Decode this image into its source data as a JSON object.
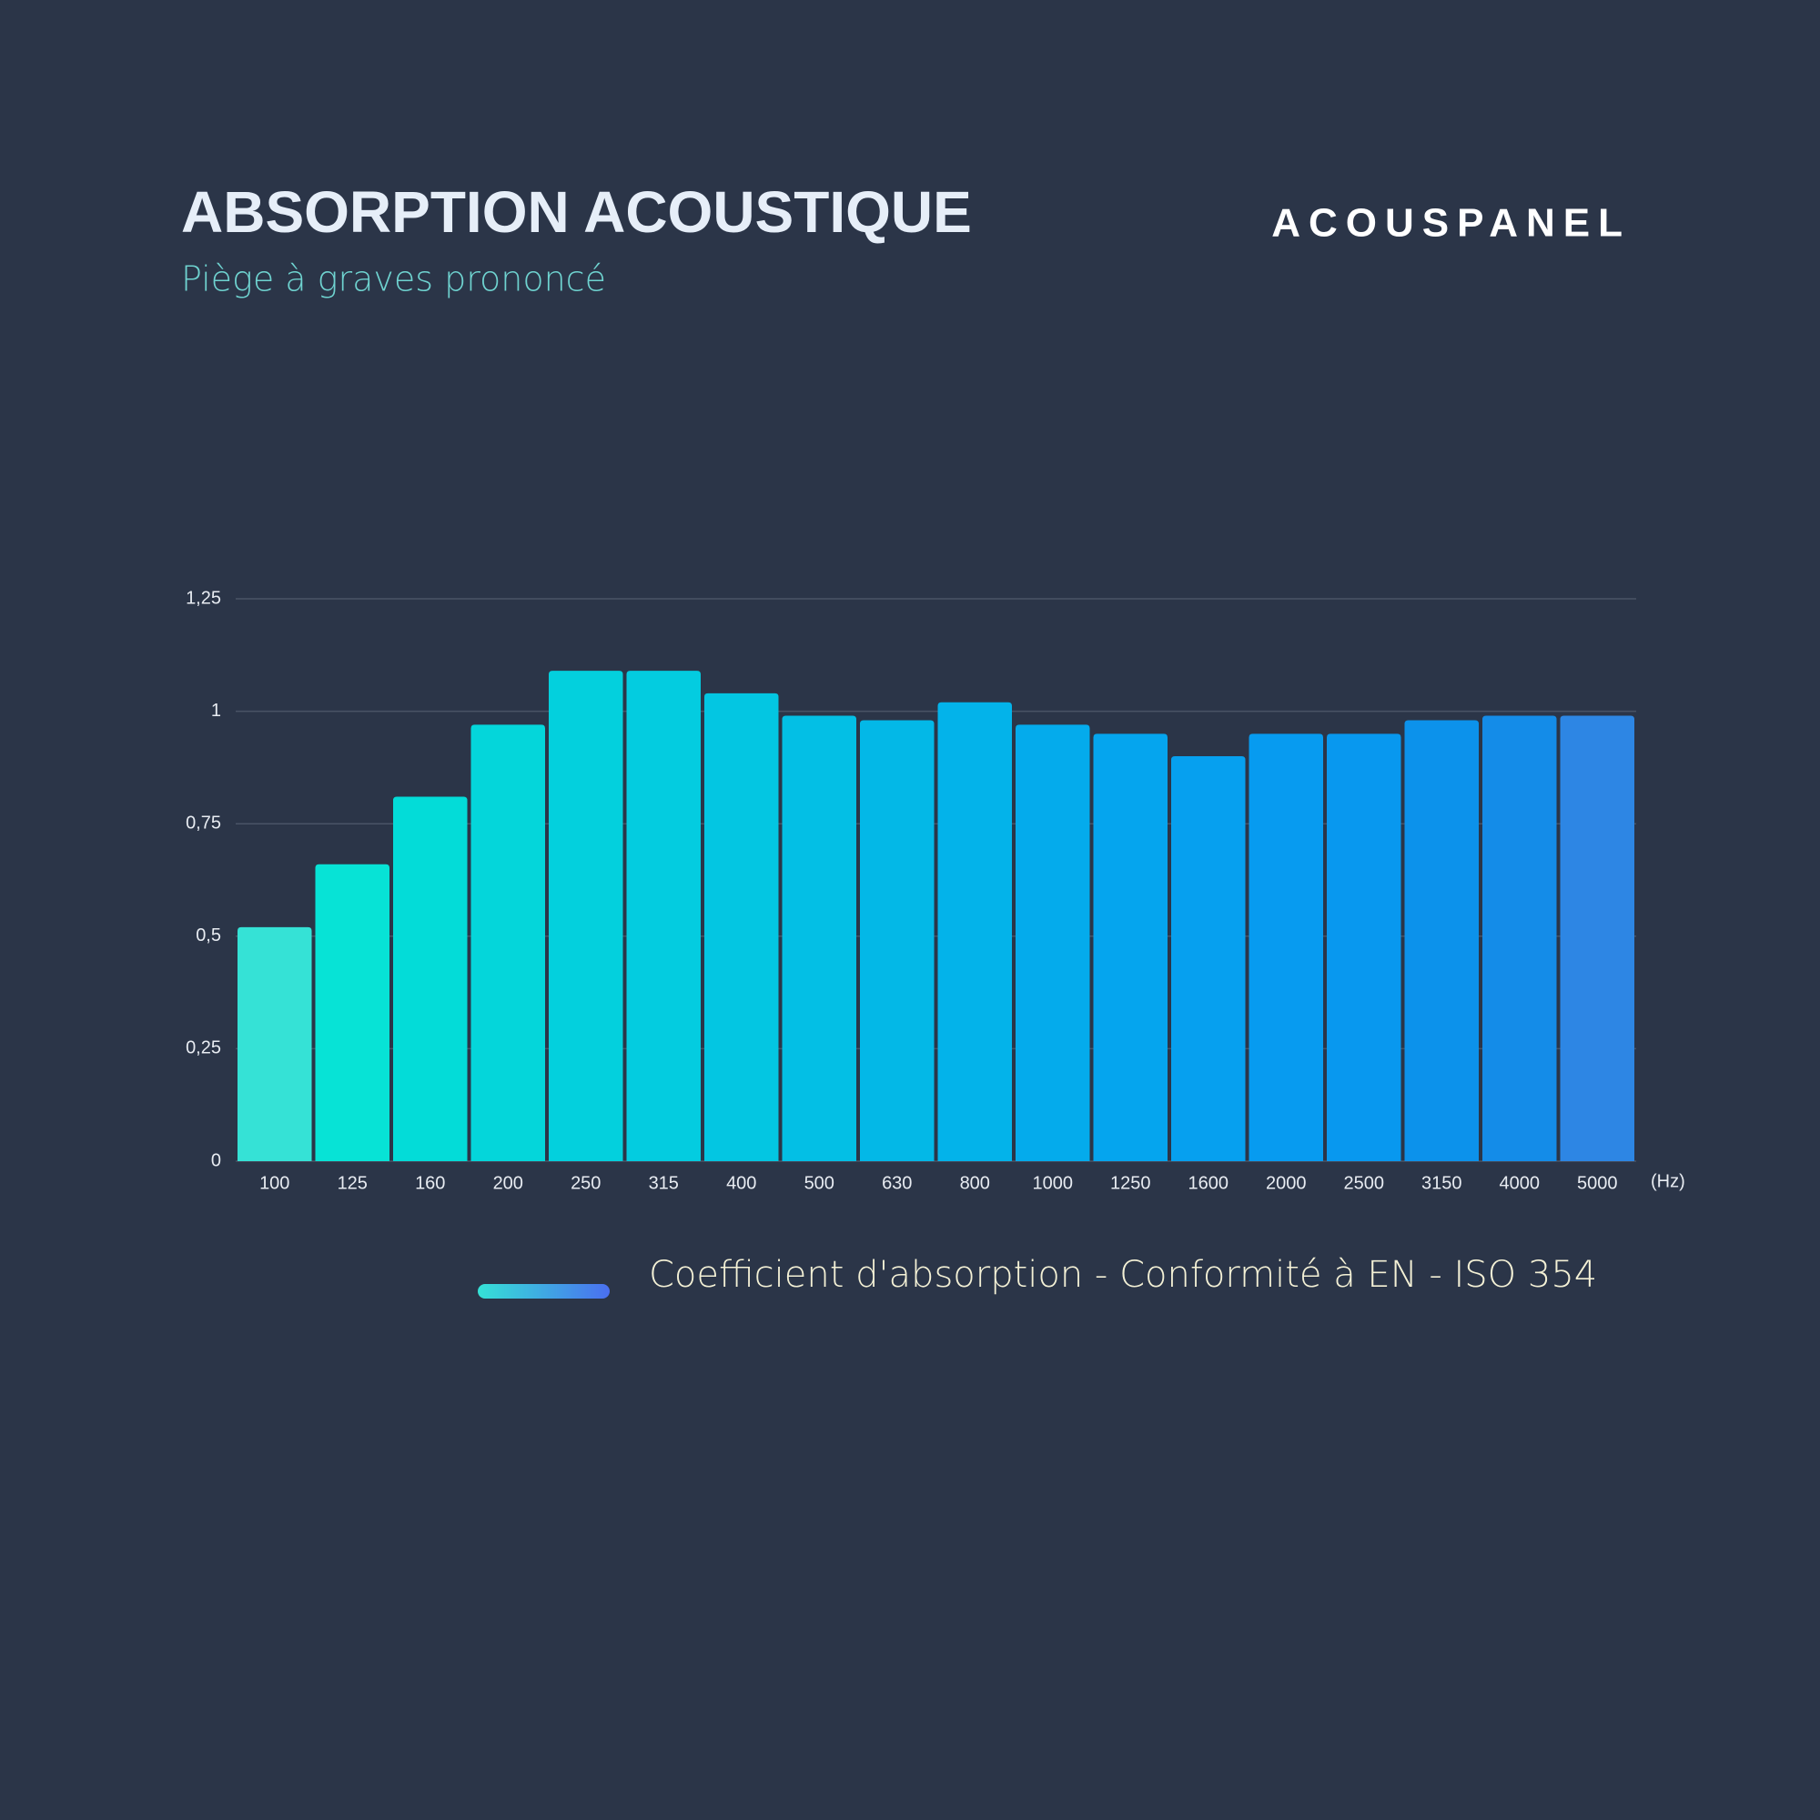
{
  "header": {
    "title": "ABSORPTION ACOUSTIQUE",
    "subtitle": "Piège à graves prononcé",
    "brand": "ACOUSPANEL"
  },
  "chart_data": {
    "type": "bar",
    "categories": [
      "100",
      "125",
      "160",
      "200",
      "250",
      "315",
      "400",
      "500",
      "630",
      "800",
      "1000",
      "1250",
      "1600",
      "2000",
      "2500",
      "3150",
      "4000",
      "5000"
    ],
    "x_label": "(Hz)",
    "series": [
      {
        "name": "Coefficient d'absorption - Conformité à EN - ISO 354",
        "values": [
          0.52,
          0.66,
          0.81,
          0.97,
          1.09,
          1.09,
          1.04,
          0.99,
          0.98,
          1.02,
          0.97,
          0.95,
          0.9,
          0.95,
          0.95,
          0.98,
          0.99,
          0.99
        ],
        "colors": [
          "#35e2d6",
          "#07e3d6",
          "#03dcd8",
          "#04d6da",
          "#03d0dd",
          "#03cce0",
          "#03c6e2",
          "#03bfe5",
          "#03b8e7",
          "#03b3ea",
          "#04abec",
          "#05a5ee",
          "#06a0ef",
          "#079bf0",
          "#0898ef",
          "#0c92eb",
          "#148ce8",
          "#2d86e4"
        ]
      }
    ],
    "ylim": [
      0,
      1.25
    ],
    "yticks": [
      0,
      {
        "value": 0.25,
        "label": "0,25"
      },
      {
        "value": 0.5,
        "label": "0,5"
      },
      {
        "value": 0.75,
        "label": "0,75"
      },
      1,
      {
        "value": 1.25,
        "label": "1,25"
      }
    ],
    "grid": true
  }
}
